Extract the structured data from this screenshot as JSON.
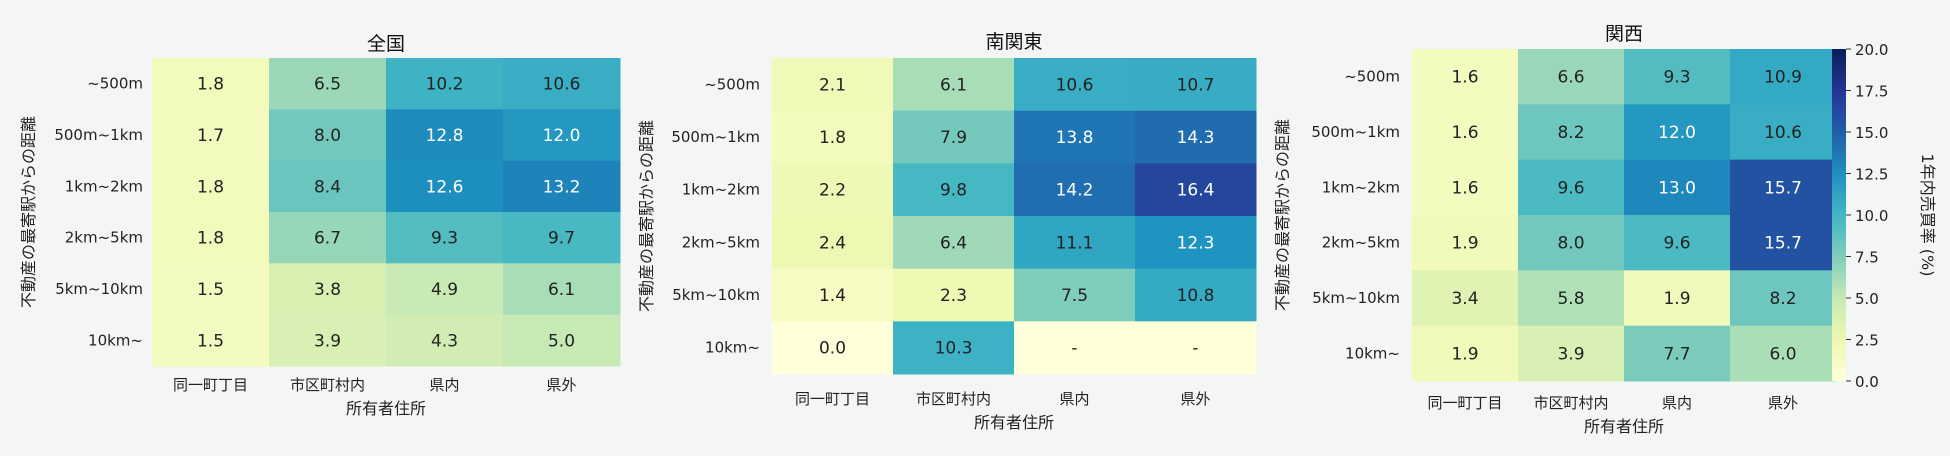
{
  "figure": {
    "y_categories": [
      "~500m",
      "500m~1km",
      "1km~2km",
      "2km~5km",
      "5km~10km",
      "10km~"
    ],
    "x_categories": [
      "同一町丁目",
      "市区町村内",
      "県内",
      "県外"
    ],
    "ylabel": "不動産の最寄駅からの距離",
    "xlabel": "所有者住所"
  },
  "chart_data": [
    {
      "type": "heatmap",
      "title": "全国",
      "rows": [
        "~500m",
        "500m~1km",
        "1km~2km",
        "2km~5km",
        "5km~10km",
        "10km~"
      ],
      "columns": [
        "同一町丁目",
        "市区町村内",
        "県内",
        "県外"
      ],
      "xlabel": "所有者住所",
      "ylabel": "不動産の最寄駅からの距離",
      "values": [
        [
          1.8,
          6.5,
          10.2,
          10.6
        ],
        [
          1.7,
          8.0,
          12.8,
          12.0
        ],
        [
          1.8,
          8.4,
          12.6,
          13.2
        ],
        [
          1.8,
          6.7,
          9.3,
          9.7
        ],
        [
          1.5,
          3.8,
          4.9,
          6.1
        ],
        [
          1.5,
          3.9,
          4.3,
          5.0
        ]
      ],
      "labels": [
        [
          "1.8",
          "6.5",
          "10.2",
          "10.6"
        ],
        [
          "1.7",
          "8.0",
          "12.8",
          "12.0"
        ],
        [
          "1.8",
          "8.4",
          "12.6",
          "13.2"
        ],
        [
          "1.8",
          "6.7",
          "9.3",
          "9.7"
        ],
        [
          "1.5",
          "3.8",
          "4.9",
          "6.1"
        ],
        [
          "1.5",
          "3.9",
          "4.3",
          "5.0"
        ]
      ],
      "vmin": 0,
      "vmax": 20
    },
    {
      "type": "heatmap",
      "title": "南関東",
      "rows": [
        "~500m",
        "500m~1km",
        "1km~2km",
        "2km~5km",
        "5km~10km",
        "10km~"
      ],
      "columns": [
        "同一町丁目",
        "市区町村内",
        "県内",
        "県外"
      ],
      "xlabel": "所有者住所",
      "ylabel": "不動産の最寄駅からの距離",
      "values": [
        [
          2.1,
          6.1,
          10.6,
          10.7
        ],
        [
          1.8,
          7.9,
          13.8,
          14.3
        ],
        [
          2.2,
          9.8,
          14.2,
          16.4
        ],
        [
          2.4,
          6.4,
          11.1,
          12.3
        ],
        [
          1.4,
          2.3,
          7.5,
          10.8
        ],
        [
          0.0,
          10.3,
          null,
          null
        ]
      ],
      "labels": [
        [
          "2.1",
          "6.1",
          "10.6",
          "10.7"
        ],
        [
          "1.8",
          "7.9",
          "13.8",
          "14.3"
        ],
        [
          "2.2",
          "9.8",
          "14.2",
          "16.4"
        ],
        [
          "2.4",
          "6.4",
          "11.1",
          "12.3"
        ],
        [
          "1.4",
          "2.3",
          "7.5",
          "10.8"
        ],
        [
          "0.0",
          "10.3",
          "-",
          "-"
        ]
      ],
      "vmin": 0,
      "vmax": 20
    },
    {
      "type": "heatmap",
      "title": "関西",
      "rows": [
        "~500m",
        "500m~1km",
        "1km~2km",
        "2km~5km",
        "5km~10km",
        "10km~"
      ],
      "columns": [
        "同一町丁目",
        "市区町村内",
        "県内",
        "県外"
      ],
      "xlabel": "所有者住所",
      "ylabel": "不動産の最寄駅からの距離",
      "values": [
        [
          1.6,
          6.6,
          9.3,
          10.9
        ],
        [
          1.6,
          8.2,
          12.0,
          10.6
        ],
        [
          1.6,
          9.6,
          13.0,
          15.7
        ],
        [
          1.9,
          8.0,
          9.6,
          15.7
        ],
        [
          3.4,
          5.8,
          1.9,
          8.2
        ],
        [
          1.9,
          3.9,
          7.7,
          6.0
        ]
      ],
      "labels": [
        [
          "1.6",
          "6.6",
          "9.3",
          "10.9"
        ],
        [
          "1.6",
          "8.2",
          "12.0",
          "10.6"
        ],
        [
          "1.6",
          "9.6",
          "13.0",
          "15.7"
        ],
        [
          "1.9",
          "8.0",
          "9.6",
          "15.7"
        ],
        [
          "3.4",
          "5.8",
          "1.9",
          "8.2"
        ],
        [
          "1.9",
          "3.9",
          "7.7",
          "6.0"
        ]
      ],
      "vmin": 0,
      "vmax": 20
    }
  ],
  "colorbar": {
    "label": "1年内売買率 (%)",
    "vmin": 0,
    "vmax": 20,
    "ticks": [
      "0.0",
      "2.5",
      "5.0",
      "7.5",
      "10.0",
      "12.5",
      "15.0",
      "17.5",
      "20.0"
    ],
    "colormap": "YlGnBu",
    "missing_color": "#ffffd9"
  }
}
